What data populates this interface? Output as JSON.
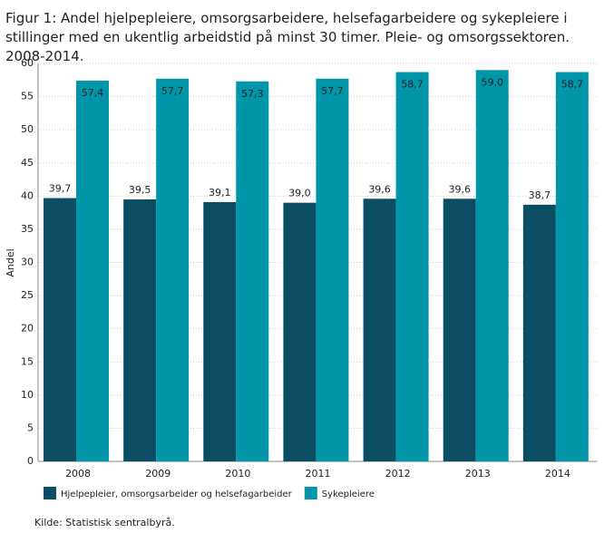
{
  "chart_data": {
    "type": "bar",
    "title": "Figur 1: Andel hjelpepleiere, omsorgsarbeidere, helsefagarbeidere og sykepleiere i stillinger med en ukentlig arbeidstid på minst 30 timer. Pleie- og omsorgssektoren. 2008-2014.",
    "y_label": "Andel",
    "categories": [
      "2008",
      "2009",
      "2010",
      "2011",
      "2012",
      "2013",
      "2014"
    ],
    "series": [
      {
        "name": "Hjelpepleier, omsorgsarbeider og helsefagarbeider",
        "color": "#0b4d63",
        "values": [
          39.7,
          39.5,
          39.1,
          39.0,
          39.6,
          39.6,
          38.7
        ],
        "value_labels": [
          "39,7",
          "39,5",
          "39,1",
          "39,0",
          "39,6",
          "39,6",
          "38,7"
        ]
      },
      {
        "name": "Sykepleiere",
        "color": "#0095a8",
        "values": [
          57.4,
          57.7,
          57.3,
          57.7,
          58.7,
          59.0,
          58.7
        ],
        "value_labels": [
          "57,4",
          "57,7",
          "57,3",
          "57,7",
          "58,7",
          "59,0",
          "58,7"
        ]
      }
    ],
    "ylim": [
      0,
      60
    ],
    "yticks": [
      0,
      5,
      10,
      15,
      20,
      25,
      30,
      35,
      40,
      45,
      50,
      55,
      60
    ],
    "grid": true,
    "source": "Kilde: Statistisk sentralbyrå."
  }
}
